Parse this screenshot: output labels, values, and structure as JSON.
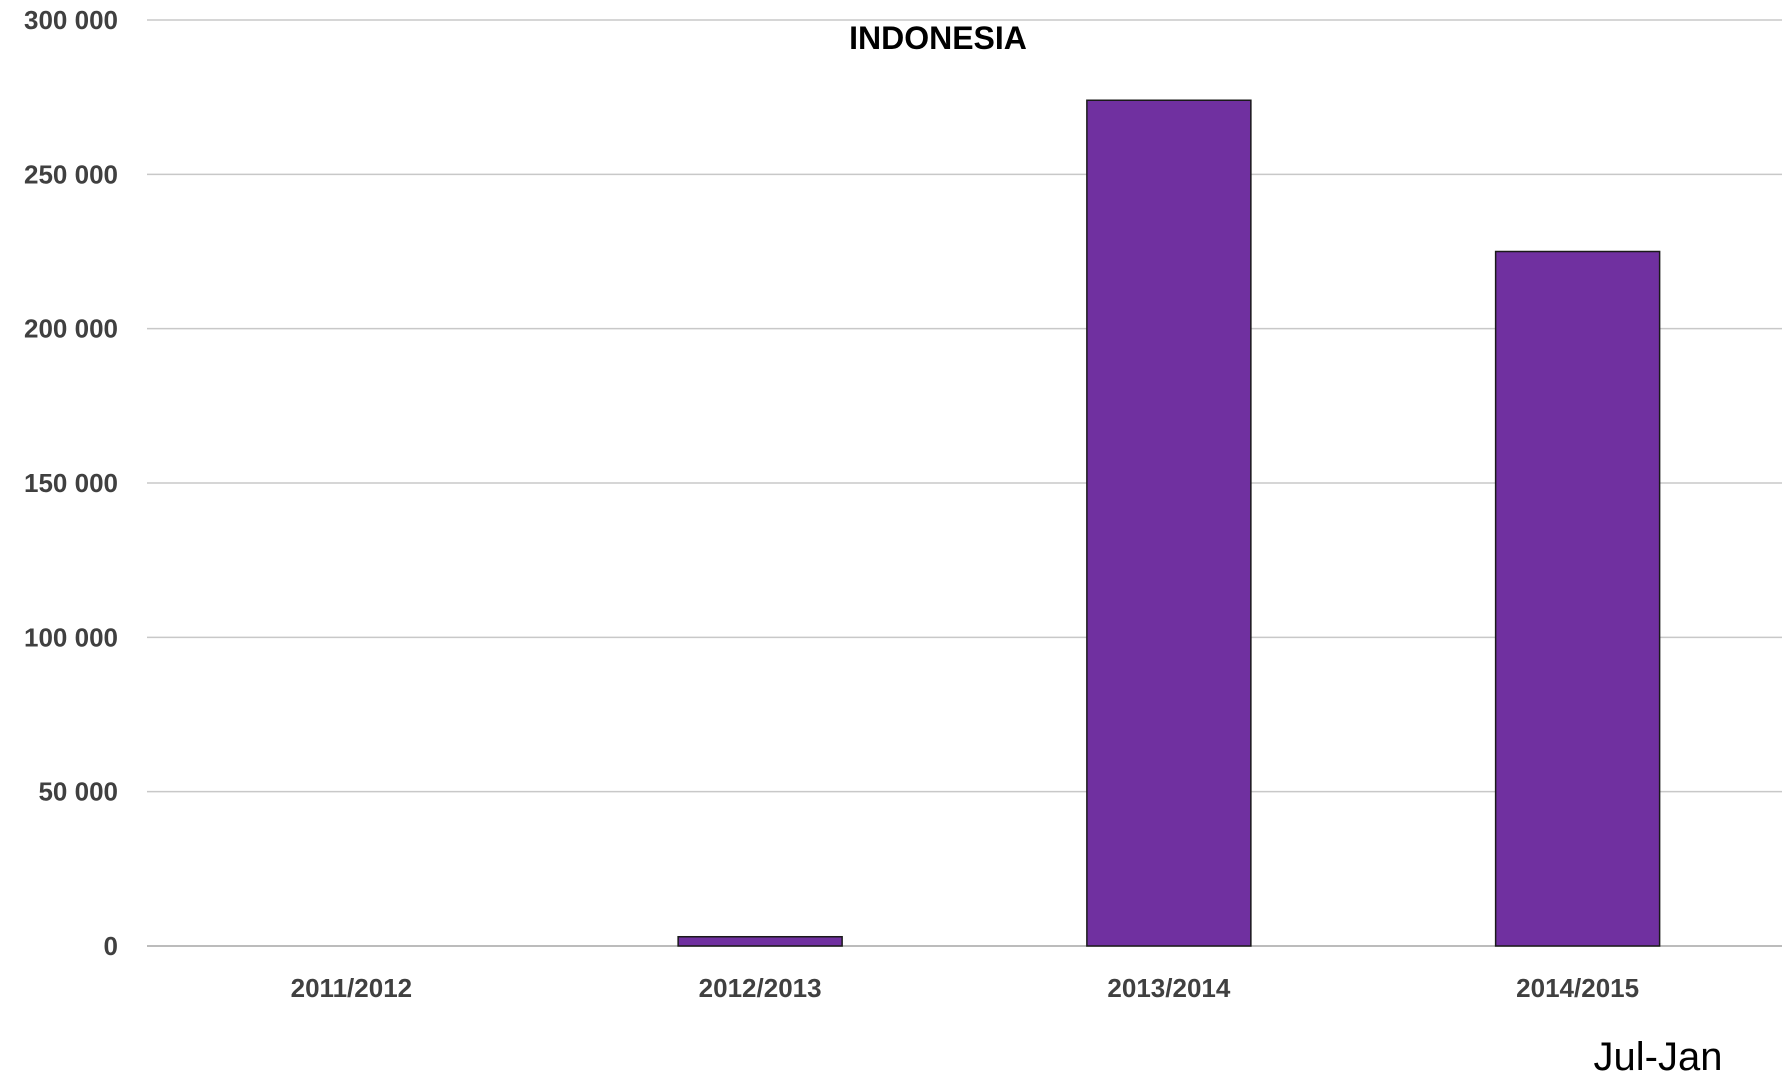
{
  "chart_data": {
    "type": "bar",
    "title": "INDONESIA",
    "categories": [
      "2011/2012",
      "2012/2013",
      "2013/2014",
      "2014/2015"
    ],
    "series": [
      {
        "values": [
          0,
          3000,
          274000,
          225000
        ]
      }
    ],
    "ylim": [
      0,
      300000
    ],
    "yticks": [
      0,
      50000,
      100000,
      150000,
      200000,
      250000,
      300000
    ],
    "ytick_labels": [
      "0",
      "50 000",
      "100 000",
      "150 000",
      "200 000",
      "250 000",
      "300 000"
    ],
    "xlabel": "",
    "ylabel": "",
    "grid": true,
    "legend": "none",
    "bar_color": "#7030a0",
    "annotation": "Jul-Jan"
  }
}
